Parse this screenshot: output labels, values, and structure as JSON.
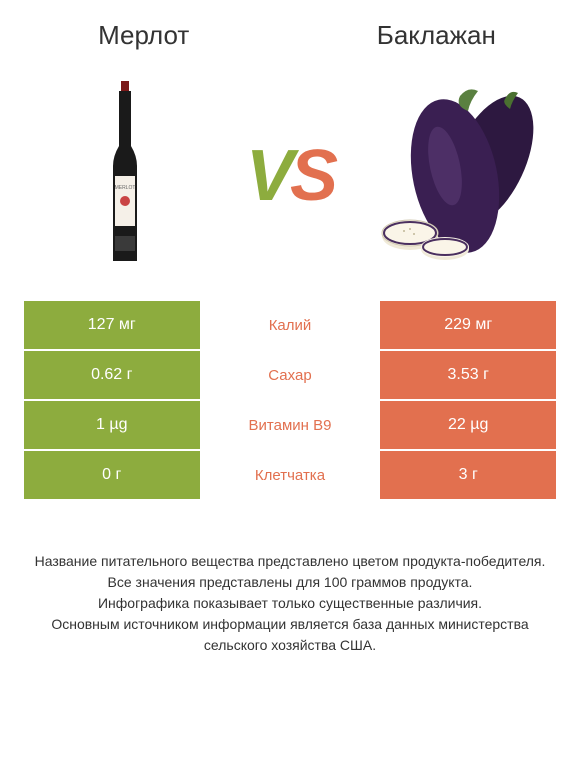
{
  "header": {
    "left_title": "Мерлот",
    "right_title": "Баклажан"
  },
  "vs": {
    "text": "VS",
    "left_color": "#8dac3e",
    "right_color": "#e2704f"
  },
  "colors": {
    "left_bg": "#8dac3e",
    "right_bg": "#e2704f",
    "cell_text": "#ffffff",
    "mid_left_color": "#8dac3e",
    "mid_right_color": "#e2704f"
  },
  "table": {
    "rows": [
      {
        "left": "127 мг",
        "mid": "Калий",
        "right": "229 мг",
        "winner": "right"
      },
      {
        "left": "0.62 г",
        "mid": "Сахар",
        "right": "3.53 г",
        "winner": "right"
      },
      {
        "left": "1 µg",
        "mid": "Витамин B9",
        "right": "22 µg",
        "winner": "right"
      },
      {
        "left": "0 г",
        "mid": "Клетчатка",
        "right": "3 г",
        "winner": "right"
      }
    ]
  },
  "footer": {
    "line1": "Название питательного вещества представлено цветом продукта-победителя.",
    "line2": "Все значения представлены для 100 граммов продукта.",
    "line3": "Инфографика показывает только существенные различия.",
    "line4": "Основным источником информации является база данных министерства сельского хозяйства США."
  }
}
